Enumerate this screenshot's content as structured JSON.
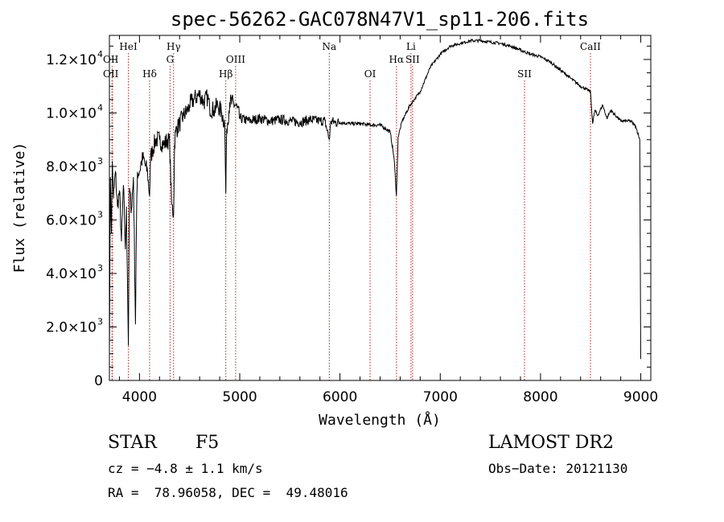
{
  "chart_data": {
    "type": "line",
    "title": "spec-56262-GAC078N47V1_sp11-206.fits",
    "xlabel": "Wavelength (Å)",
    "ylabel": "Flux (relative)",
    "xlim": [
      3700,
      9100
    ],
    "ylim": [
      0,
      12900
    ],
    "grid": false,
    "x_ticks": [
      {
        "value": 4000,
        "label": "4000"
      },
      {
        "value": 5000,
        "label": "5000"
      },
      {
        "value": 6000,
        "label": "6000"
      },
      {
        "value": 7000,
        "label": "7000"
      },
      {
        "value": 8000,
        "label": "8000"
      },
      {
        "value": 9000,
        "label": "9000"
      }
    ],
    "y_ticks": [
      {
        "value": 0,
        "label": "0",
        "exp": ""
      },
      {
        "value": 2000,
        "label": "2.0×10",
        "exp": "3"
      },
      {
        "value": 4000,
        "label": "4.0×10",
        "exp": "3"
      },
      {
        "value": 6000,
        "label": "6.0×10",
        "exp": "3"
      },
      {
        "value": 8000,
        "label": "8.0×10",
        "exp": "3"
      },
      {
        "value": 10000,
        "label": "1.0×10",
        "exp": "4"
      },
      {
        "value": 12000,
        "label": "1.2×10",
        "exp": "4"
      }
    ],
    "line_color": "#000000",
    "marker_color": "#b22222",
    "spectrum": {
      "x": [
        3700,
        3710,
        3720,
        3730,
        3740,
        3760,
        3780,
        3800,
        3820,
        3840,
        3860,
        3870,
        3880,
        3889,
        3900,
        3920,
        3940,
        3960,
        3970,
        3980,
        4000,
        4020,
        4040,
        4060,
        4080,
        4101,
        4110,
        4130,
        4160,
        4200,
        4240,
        4280,
        4300,
        4320,
        4340,
        4350,
        4360,
        4400,
        4440,
        4480,
        4500,
        4540,
        4600,
        4640,
        4680,
        4700,
        4740,
        4780,
        4820,
        4850,
        4861,
        4870,
        4900,
        4960,
        5000,
        5100,
        5200,
        5300,
        5400,
        5500,
        5600,
        5700,
        5800,
        5850,
        5893,
        5910,
        5950,
        6000,
        6100,
        6200,
        6300,
        6400,
        6500,
        6540,
        6563,
        6580,
        6620,
        6700,
        6800,
        6900,
        7000,
        7100,
        7200,
        7300,
        7400,
        7500,
        7600,
        7700,
        7800,
        7900,
        8000,
        8100,
        8200,
        8300,
        8400,
        8498,
        8520,
        8542,
        8570,
        8620,
        8662,
        8700,
        8800,
        8900,
        8950,
        8990,
        9000
      ],
      "y": [
        1000,
        7600,
        5500,
        8200,
        6800,
        7800,
        6500,
        7100,
        5200,
        7300,
        4900,
        6500,
        3800,
        1300,
        7200,
        6400,
        7600,
        2100,
        6000,
        7800,
        7800,
        8200,
        8300,
        8000,
        7800,
        6900,
        8300,
        8600,
        9000,
        9000,
        8800,
        9000,
        8900,
        6600,
        6200,
        8800,
        9300,
        9600,
        9900,
        10100,
        10300,
        10500,
        10700,
        10400,
        10600,
        10200,
        10100,
        10300,
        10000,
        9600,
        7000,
        9400,
        10400,
        10300,
        9800,
        9700,
        9800,
        9700,
        9750,
        9700,
        9650,
        9750,
        9700,
        9700,
        9000,
        9700,
        9650,
        9650,
        9600,
        9600,
        9550,
        9550,
        9300,
        8300,
        6900,
        9100,
        9700,
        10300,
        10800,
        11700,
        12200,
        12500,
        12600,
        12700,
        12700,
        12650,
        12600,
        12500,
        12350,
        12200,
        12100,
        11900,
        11600,
        11300,
        11000,
        10800,
        9600,
        10100,
        9900,
        10300,
        9800,
        10100,
        9700,
        9700,
        9500,
        9000,
        800
      ]
    },
    "lines": [
      {
        "label": "OII",
        "wavelength": 3727,
        "row": 3
      },
      {
        "label": "OII",
        "wavelength": 3727,
        "row": 2
      },
      {
        "label": "HeI",
        "wavelength": 3889,
        "row": 1
      },
      {
        "label": "Hδ",
        "wavelength": 4101,
        "row": 3
      },
      {
        "label": "Hγ",
        "wavelength": 4340,
        "row": 1
      },
      {
        "label": "G",
        "wavelength": 4305,
        "row": 2
      },
      {
        "label": "Hβ",
        "wavelength": 4861,
        "row": 3
      },
      {
        "label": "OIII",
        "wavelength": 4959,
        "row": 2
      },
      {
        "label": "Na",
        "wavelength": 5893,
        "row": 1
      },
      {
        "label": "OI",
        "wavelength": 6300,
        "row": 3
      },
      {
        "label": "Hα",
        "wavelength": 6563,
        "row": 2
      },
      {
        "label": "Li",
        "wavelength": 6708,
        "row": 1
      },
      {
        "label": "SII",
        "wavelength": 6724,
        "row": 2
      },
      {
        "label": "SII",
        "wavelength": 7840,
        "row": 3
      },
      {
        "label": "CaII",
        "wavelength": 8498,
        "row": 1
      }
    ]
  },
  "footer": {
    "object_class": "STAR",
    "subclass": "F5",
    "survey": "LAMOST DR2",
    "redshift": "cz = −4.8 ± 1.1 km/s",
    "obs_date": "Obs−Date: 20121130",
    "coords": "RA =  78.96058, DEC =  49.48016"
  }
}
